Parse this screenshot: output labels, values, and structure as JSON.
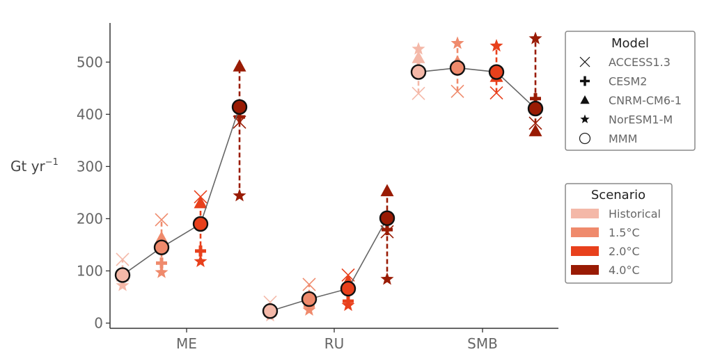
{
  "chart_data": {
    "type": "scatter",
    "title": "",
    "xlabel": "",
    "ylabel": "Gt yr",
    "ylabel_superscript": "−1",
    "ylim": [
      -10,
      575
    ],
    "yticks": [
      0,
      100,
      200,
      300,
      400,
      500
    ],
    "categories": [
      "ME",
      "RU",
      "SMB"
    ],
    "models": [
      {
        "name": "ACCESS1.3",
        "marker": "x"
      },
      {
        "name": "CESM2",
        "marker": "plus"
      },
      {
        "name": "CNRM-CM6-1",
        "marker": "triangle"
      },
      {
        "name": "NorESM1-M",
        "marker": "star"
      },
      {
        "name": "MMM",
        "marker": "circle"
      }
    ],
    "scenarios": [
      {
        "name": "Historical",
        "color": "#f4b8a8"
      },
      {
        "name": "1.5°C",
        "color": "#ef8a6c"
      },
      {
        "name": "2.0°C",
        "color": "#e8401c"
      },
      {
        "name": "4.0°C",
        "color": "#991b04"
      }
    ],
    "legend_titles": {
      "model": "Model",
      "scenario": "Scenario"
    },
    "legend_placement": "right",
    "grid": false,
    "values": {
      "ME": {
        "Historical": {
          "ACCESS1.3": 122,
          "CESM2": 84,
          "CNRM-CM6-1": 90,
          "NorESM1-M": 72,
          "MMM": 92
        },
        "1.5°C": {
          "ACCESS1.3": 198,
          "CESM2": 115,
          "CNRM-CM6-1": 163,
          "NorESM1-M": 97,
          "MMM": 145
        },
        "2.0°C": {
          "ACCESS1.3": 242,
          "CESM2": 138,
          "CNRM-CM6-1": 230,
          "NorESM1-M": 118,
          "MMM": 190
        },
        "4.0°C": {
          "ACCESS1.3": 385,
          "CESM2": 395,
          "CNRM-CM6-1": 492,
          "NorESM1-M": 244,
          "MMM": 414
        }
      },
      "RU": {
        "Historical": {
          "ACCESS1.3": 40,
          "CESM2": 19,
          "CNRM-CM6-1": 22,
          "NorESM1-M": 14,
          "MMM": 23
        },
        "1.5°C": {
          "ACCESS1.3": 74,
          "CESM2": 33,
          "CNRM-CM6-1": 48,
          "NorESM1-M": 25,
          "MMM": 46
        },
        "2.0°C": {
          "ACCESS1.3": 92,
          "CESM2": 42,
          "CNRM-CM6-1": 80,
          "NorESM1-M": 34,
          "MMM": 66
        },
        "4.0°C": {
          "ACCESS1.3": 175,
          "CESM2": 179,
          "CNRM-CM6-1": 253,
          "NorESM1-M": 84,
          "MMM": 201
        }
      },
      "SMB": {
        "Historical": {
          "ACCESS1.3": 440,
          "CESM2": 488,
          "CNRM-CM6-1": 508,
          "NorESM1-M": 525,
          "MMM": 481
        },
        "1.5°C": {
          "ACCESS1.3": 444,
          "CESM2": 490,
          "CNRM-CM6-1": 500,
          "NorESM1-M": 536,
          "MMM": 489
        },
        "2.0°C": {
          "ACCESS1.3": 441,
          "CESM2": 482,
          "CNRM-CM6-1": 472,
          "NorESM1-M": 531,
          "MMM": 481
        },
        "4.0°C": {
          "ACCESS1.3": 383,
          "CESM2": 430,
          "CNRM-CM6-1": 368,
          "NorESM1-M": 545,
          "MMM": 411
        }
      }
    }
  }
}
